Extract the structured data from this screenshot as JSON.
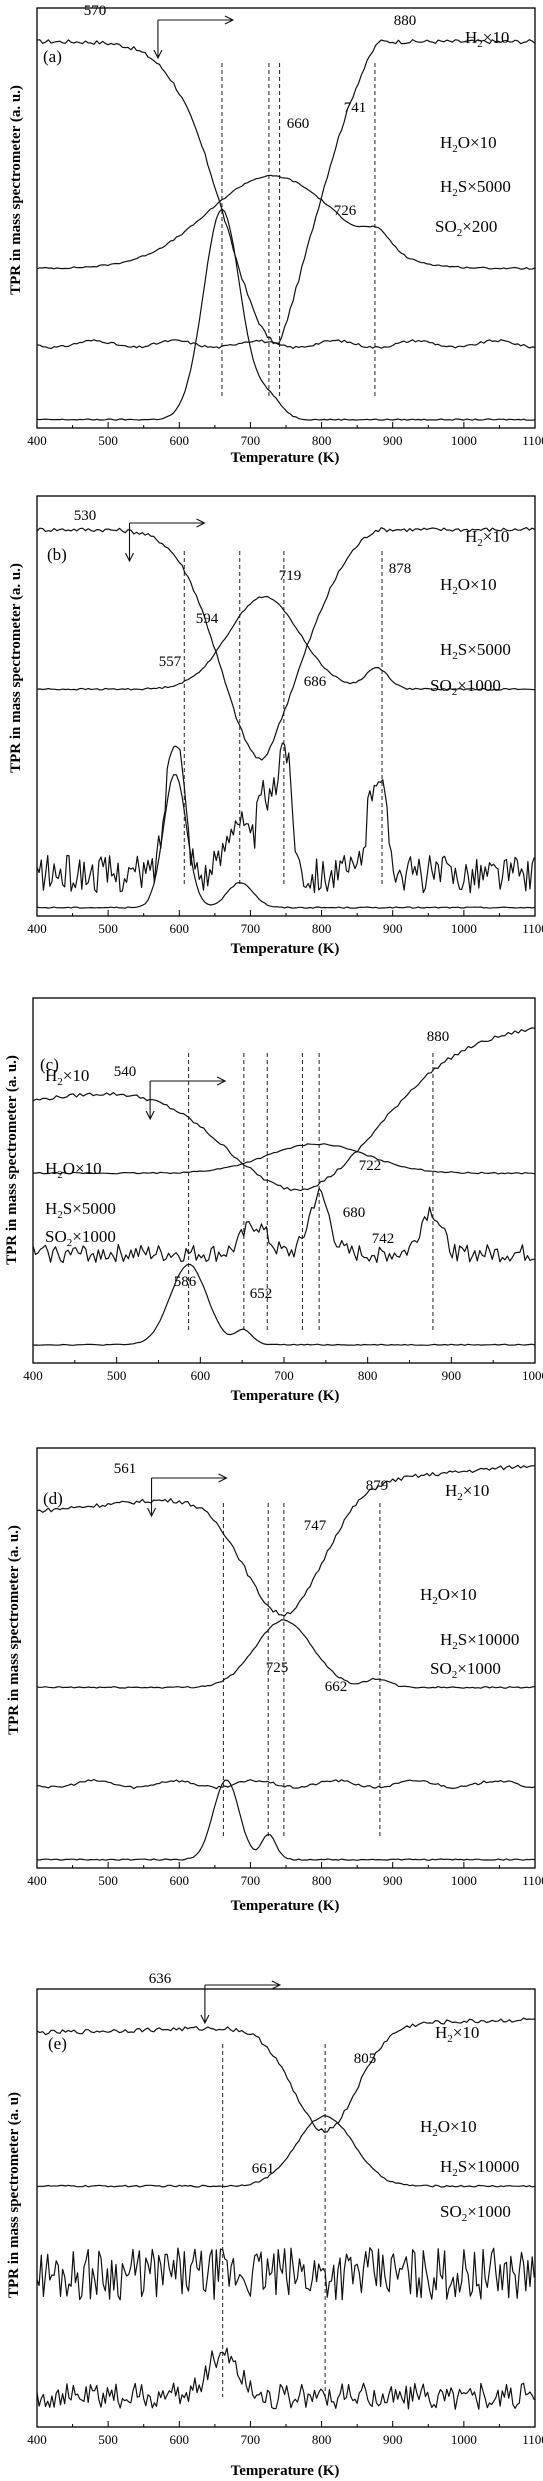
{
  "y_axis_title": "TPR in mass spectrometer (a. u.)",
  "panel_e_y_axis_title": "TPR in mass spectrometer (a. u)",
  "x_axis_title": "Temperature (K)",
  "chart_data": [
    {
      "type": "line",
      "panel_label": "(a)",
      "xlim": [
        400,
        1100
      ],
      "xticks": [
        400,
        500,
        600,
        700,
        800,
        900,
        1000,
        1100
      ],
      "xlabel": "Temperature (K)",
      "ylabel": "TPR in mass spectrometer (a. u.)",
      "onset_temperature": 570,
      "series": [
        {
          "name": "H2×10",
          "label_main": "H",
          "label_sub": "2",
          "label_rest": "×10",
          "shape": "h2_single",
          "level": 0.92,
          "depth": 0.72,
          "center": 741,
          "width": 75,
          "step_at": 600,
          "plateau_end": 880
        },
        {
          "name": "H2O×10",
          "label_main": "H",
          "label_sub": "2",
          "label_rest": "O×10",
          "shape": "h2o",
          "level": 0.38,
          "peaks": [
            {
              "x": 730,
              "h": 0.22,
              "w": 90
            },
            {
              "x": 880,
              "h": 0.04,
              "w": 18
            }
          ]
        },
        {
          "name": "H2S×5000",
          "label_main": "H",
          "label_sub": "2",
          "label_rest": "S×5000",
          "shape": "flat_wave",
          "level": 0.2
        },
        {
          "name": "SO2×200",
          "label_main": "SO",
          "label_sub": "2",
          "label_rest": "×200",
          "shape": "so2",
          "level": 0.02,
          "peaks": [
            {
              "x": 660,
              "h": 0.5,
              "w": 26
            },
            {
              "x": 726,
              "h": 0.05,
              "w": 18
            }
          ]
        }
      ],
      "peak_labels": [
        570,
        880,
        741,
        660,
        726
      ],
      "dashed_lines": [
        660,
        726,
        741,
        875
      ]
    },
    {
      "type": "line",
      "panel_label": "(b)",
      "xlim": [
        400,
        1100
      ],
      "xticks": [
        400,
        500,
        600,
        700,
        800,
        900,
        1000,
        1100
      ],
      "xlabel": "Temperature (K)",
      "ylabel": "TPR in mass spectrometer (a. u.)",
      "onset_temperature": 530,
      "series": [
        {
          "name": "H2×10",
          "label_main": "H",
          "label_sub": "2",
          "label_rest": "×10",
          "shape": "h2_single",
          "level": 0.92,
          "depth": 0.55,
          "center": 719,
          "width": 60,
          "step_at": 560,
          "plateau_end": 878
        },
        {
          "name": "H2O×10",
          "label_main": "H",
          "label_sub": "2",
          "label_rest": "O×10",
          "shape": "h2o",
          "level": 0.54,
          "peaks": [
            {
              "x": 719,
              "h": 0.22,
              "w": 50
            },
            {
              "x": 878,
              "h": 0.05,
              "w": 16
            }
          ]
        },
        {
          "name": "H2S×5000",
          "label_main": "H",
          "label_sub": "2",
          "label_rest": "S×5000",
          "shape": "noisy_peaks",
          "level": 0.1,
          "peaks": [
            {
              "x": 594,
              "h": 0.35,
              "w": 12
            },
            {
              "x": 680,
              "h": 0.14,
              "w": 14
            },
            {
              "x": 719,
              "h": 0.18,
              "w": 10
            },
            {
              "x": 747,
              "h": 0.32,
              "w": 10
            },
            {
              "x": 878,
              "h": 0.25,
              "w": 12
            }
          ],
          "noise": 0.045
        },
        {
          "name": "SO2×1000",
          "label_main": "SO",
          "label_sub": "2",
          "label_rest": "×1000",
          "shape": "so2",
          "level": 0.02,
          "peaks": [
            {
              "x": 594,
              "h": 0.32,
              "w": 16
            },
            {
              "x": 686,
              "h": 0.06,
              "w": 18
            }
          ]
        }
      ],
      "peak_labels": [
        530,
        719,
        878,
        594,
        557,
        686
      ],
      "dashed_lines": [
        607,
        685,
        747,
        885
      ]
    },
    {
      "type": "line",
      "panel_label": "(c)",
      "xlim": [
        400,
        1000
      ],
      "xticks": [
        400,
        500,
        600,
        700,
        800,
        900,
        1000
      ],
      "xlabel": "Temperature (K)",
      "ylabel": "TPR in mass spectrometer (a. u.)",
      "onset_temperature": 540,
      "series": [
        {
          "name": "H2×10",
          "label_main": "H",
          "label_sub": "2",
          "label_rest": "×10",
          "shape": "h2_single",
          "level": 0.92,
          "depth": 0.35,
          "center": 722,
          "width": 90,
          "step_at": 0,
          "plateau_end": 880,
          "start_level": 0.72
        },
        {
          "name": "H2O×10",
          "label_main": "H",
          "label_sub": "2",
          "label_rest": "O×10",
          "shape": "h2o",
          "level": 0.52,
          "peaks": [
            {
              "x": 740,
              "h": 0.08,
              "w": 60
            }
          ]
        },
        {
          "name": "H2S×5000",
          "label_main": "H",
          "label_sub": "2",
          "label_rest": "S×5000",
          "shape": "noisy_peaks",
          "level": 0.3,
          "peaks": [
            {
              "x": 665,
              "h": 0.08,
              "w": 14
            },
            {
              "x": 742,
              "h": 0.16,
              "w": 12
            },
            {
              "x": 875,
              "h": 0.12,
              "w": 12
            }
          ],
          "noise": 0.025
        },
        {
          "name": "SO2×1000",
          "label_main": "SO",
          "label_sub": "2",
          "label_rest": "×1000",
          "shape": "so2",
          "level": 0.05,
          "peaks": [
            {
              "x": 586,
              "h": 0.22,
              "w": 22
            },
            {
              "x": 652,
              "h": 0.04,
              "w": 10
            }
          ]
        }
      ],
      "peak_labels": [
        540,
        880,
        722,
        680,
        742,
        586,
        652
      ],
      "dashed_lines": [
        586,
        652,
        680,
        722,
        742,
        878
      ]
    },
    {
      "type": "line",
      "panel_label": "(d)",
      "xlim": [
        400,
        1100
      ],
      "xticks": [
        400,
        500,
        600,
        700,
        800,
        900,
        1000,
        1100
      ],
      "xlabel": "Temperature (K)",
      "ylabel": "TPR in mass spectrometer (a. u.)",
      "onset_temperature": 561,
      "series": [
        {
          "name": "H2×10",
          "label_main": "H",
          "label_sub": "2",
          "label_rest": "×10",
          "shape": "h2_single",
          "level": 0.96,
          "depth": 0.3,
          "center": 747,
          "width": 55,
          "step_at": 0,
          "plateau_end": 879,
          "start_level": 0.85
        },
        {
          "name": "H2O×10",
          "label_main": "H",
          "label_sub": "2",
          "label_rest": "O×10",
          "shape": "h2o",
          "level": 0.43,
          "peaks": [
            {
              "x": 747,
              "h": 0.16,
              "w": 40
            },
            {
              "x": 879,
              "h": 0.02,
              "w": 16
            }
          ]
        },
        {
          "name": "H2S×10000",
          "label_main": "H",
          "label_sub": "2",
          "label_rest": "S×10000",
          "shape": "flat_wave",
          "level": 0.2
        },
        {
          "name": "SO2×1000",
          "label_main": "SO",
          "label_sub": "2",
          "label_rest": "×1000",
          "shape": "so2",
          "level": 0.02,
          "peaks": [
            {
              "x": 666,
              "h": 0.19,
              "w": 18
            },
            {
              "x": 726,
              "h": 0.06,
              "w": 10
            }
          ]
        }
      ],
      "peak_labels": [
        561,
        879,
        747,
        725,
        662
      ],
      "dashed_lines": [
        662,
        725,
        747,
        882
      ]
    },
    {
      "type": "line",
      "panel_label": "(e)",
      "xlim": [
        400,
        1100
      ],
      "xticks": [
        400,
        500,
        600,
        700,
        800,
        900,
        1000,
        1100
      ],
      "xlabel": "Temperature (K)",
      "ylabel": "TPR in mass spectrometer (a. u)",
      "onset_temperature": 636,
      "series": [
        {
          "name": "H2×10",
          "label_main": "H",
          "label_sub": "2",
          "label_rest": "×10",
          "shape": "h2_single",
          "level": 0.93,
          "depth": 0.24,
          "center": 805,
          "width": 45,
          "step_at": 0,
          "plateau_end": 1100,
          "start_level": 0.9
        },
        {
          "name": "H2O×10",
          "label_main": "H",
          "label_sub": "2",
          "label_rest": "O×10",
          "shape": "h2o",
          "level": 0.55,
          "peaks": [
            {
              "x": 805,
              "h": 0.16,
              "w": 40
            }
          ]
        },
        {
          "name": "H2S×10000",
          "label_main": "H",
          "label_sub": "2",
          "label_rest": "S×10000",
          "shape": "noisy_peaks",
          "level": 0.35,
          "peaks": [],
          "noise": 0.06
        },
        {
          "name": "SO2×1000",
          "label_main": "SO",
          "label_sub": "2",
          "label_rest": "×1000",
          "shape": "noisy_peaks",
          "level": 0.07,
          "peaks": [
            {
              "x": 661,
              "h": 0.1,
              "w": 22
            }
          ],
          "noise": 0.03
        }
      ],
      "peak_labels": [
        636,
        805,
        661
      ],
      "dashed_lines": [
        661,
        805
      ]
    }
  ]
}
